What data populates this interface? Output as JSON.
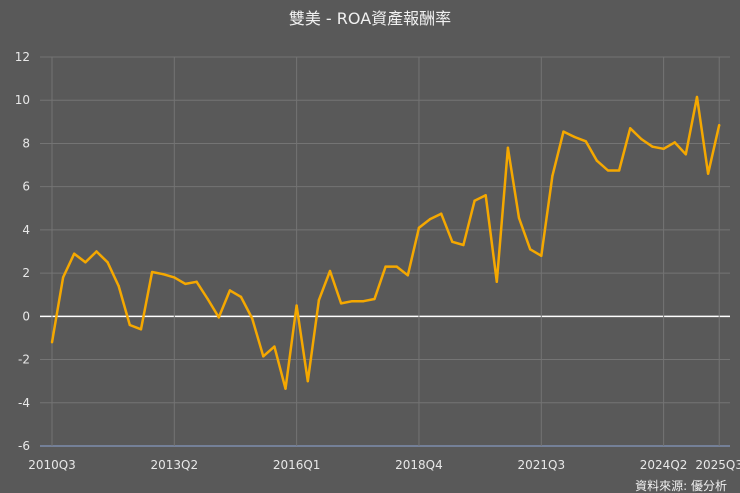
{
  "chart_data": {
    "type": "line",
    "title": "雙美 - ROA資產報酬率",
    "source": "資料來源: 優分析",
    "xlabel": "",
    "ylabel": "",
    "ylim": [
      -6,
      12
    ],
    "yticks": [
      -6,
      -4,
      -2,
      0,
      2,
      4,
      6,
      8,
      10,
      12
    ],
    "grid": true,
    "legend": "none",
    "line_color": "#f5a800",
    "zero_line_color": "#ffffff",
    "background_color": "#595959",
    "xtick_labels": [
      "2010Q3",
      "2013Q2",
      "2016Q1",
      "2018Q4",
      "2021Q3",
      "2024Q2",
      "2025Q3"
    ],
    "categories": [
      "2010Q3",
      "2010Q4",
      "2011Q1",
      "2011Q2",
      "2011Q3",
      "2011Q4",
      "2012Q1",
      "2012Q2",
      "2012Q3",
      "2012Q4",
      "2013Q1",
      "2013Q2",
      "2013Q3",
      "2013Q4",
      "2014Q1",
      "2014Q2",
      "2014Q3",
      "2014Q4",
      "2015Q1",
      "2015Q2",
      "2015Q3",
      "2015Q4",
      "2016Q1",
      "2016Q2",
      "2016Q3",
      "2016Q4",
      "2017Q1",
      "2017Q2",
      "2017Q3",
      "2017Q4",
      "2018Q1",
      "2018Q2",
      "2018Q3",
      "2018Q4",
      "2019Q1",
      "2019Q2",
      "2019Q3",
      "2019Q4",
      "2020Q1",
      "2020Q2",
      "2020Q3",
      "2020Q4",
      "2021Q1",
      "2021Q2",
      "2021Q3",
      "2021Q4",
      "2022Q1",
      "2022Q2",
      "2022Q3",
      "2022Q4",
      "2023Q1",
      "2023Q2",
      "2023Q3",
      "2023Q4",
      "2024Q1",
      "2024Q2",
      "2024Q3",
      "2024Q4",
      "2025Q1",
      "2025Q2",
      "2025Q3"
    ],
    "values": [
      -1.2,
      1.8,
      2.9,
      2.5,
      3.0,
      2.5,
      1.4,
      -0.4,
      -0.6,
      2.05,
      1.95,
      1.8,
      1.5,
      1.6,
      0.8,
      -0.05,
      1.2,
      0.9,
      -0.1,
      -1.85,
      -1.4,
      -3.35,
      0.5,
      -3.0,
      0.75,
      2.1,
      0.6,
      0.7,
      0.7,
      0.8,
      2.3,
      2.3,
      1.9,
      4.1,
      4.5,
      4.75,
      3.45,
      3.3,
      5.35,
      5.6,
      1.6,
      7.8,
      4.55,
      3.1,
      2.8,
      6.5,
      8.55,
      8.3,
      8.1,
      7.2,
      6.75,
      6.75,
      8.7,
      8.2,
      7.85,
      7.75,
      8.05,
      7.5,
      10.15,
      6.6,
      8.85
    ]
  }
}
